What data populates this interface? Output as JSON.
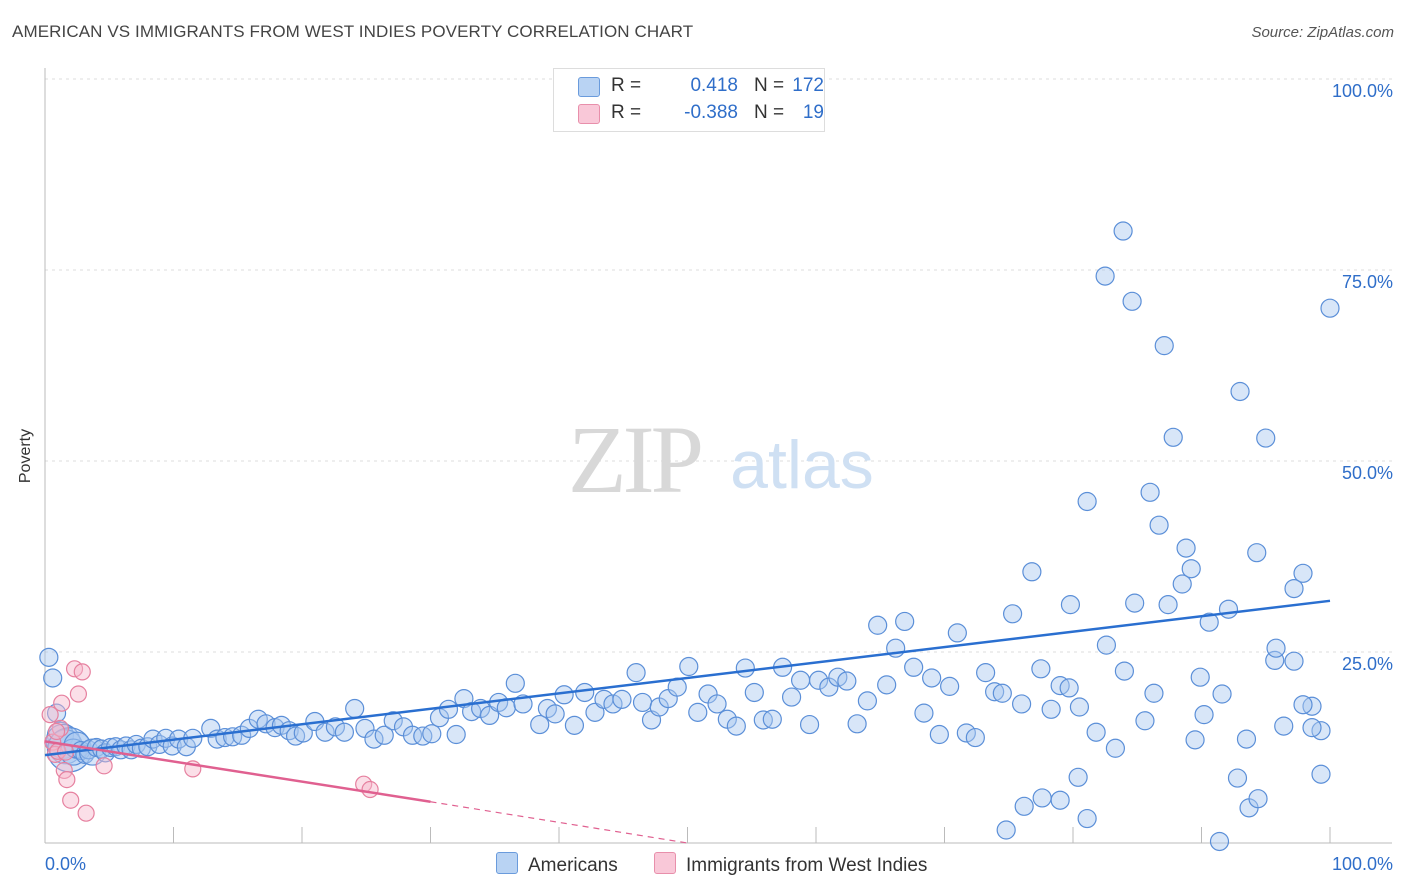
{
  "title": "AMERICAN VS IMMIGRANTS FROM WEST INDIES POVERTY CORRELATION CHART",
  "source": "Source: ZipAtlas.com",
  "watermark": {
    "zip": "ZIP",
    "atlas": "atlas"
  },
  "colors": {
    "americans_fill": "#a9c8f0",
    "americans_stroke": "#5b8fd8",
    "americans_line": "#2a6fd0",
    "immigrants_fill": "#f6b8cc",
    "immigrants_stroke": "#e6809f",
    "immigrants_line": "#e06090",
    "tick_label": "#2f6ec9"
  },
  "legend": {
    "rows": [
      {
        "r_label": "R =",
        "r_value": "0.418",
        "n_label": "N =",
        "n_value": "172"
      },
      {
        "r_label": "R =",
        "r_value": "-0.388",
        "n_label": "N =",
        "n_value": "19"
      }
    ]
  },
  "bottom_legend": {
    "americans": "Americans",
    "immigrants": "Immigrants from West Indies"
  },
  "axis": {
    "ylabel": "Poverty",
    "x_min_label": "0.0%",
    "x_max_label": "100.0%",
    "y_tick_labels": [
      "100.0%",
      "75.0%",
      "50.0%",
      "25.0%"
    ]
  },
  "chart_data": {
    "type": "scatter",
    "xlim": [
      0,
      100
    ],
    "ylim": [
      0,
      100
    ],
    "xlabel": "",
    "ylabel": "Poverty",
    "y_ticks": [
      100,
      75,
      50,
      25
    ],
    "grid": "horizontal dashed",
    "series": [
      {
        "name": "Americans",
        "trend": {
          "x0": 0,
          "y0": 11.5,
          "x1": 100,
          "y1": 31.7
        },
        "points": [
          [
            0.3,
            24.3,
            1
          ],
          [
            0.6,
            21.6,
            1
          ],
          [
            0.9,
            17.0,
            1
          ],
          [
            1.2,
            14.1,
            2
          ],
          [
            1.4,
            13.3,
            3
          ],
          [
            1.6,
            12.6,
            3
          ],
          [
            1.9,
            12.2,
            4
          ],
          [
            2.2,
            11.9,
            2
          ],
          [
            2.5,
            12.8,
            2
          ],
          [
            2.8,
            12.1,
            1
          ],
          [
            3.1,
            11.6,
            1
          ],
          [
            3.4,
            12.2,
            1
          ],
          [
            3.7,
            11.9,
            2
          ],
          [
            4.0,
            12.5,
            1
          ],
          [
            4.4,
            12.3,
            1
          ],
          [
            4.7,
            11.8,
            1
          ],
          [
            5.1,
            12.5,
            1
          ],
          [
            5.5,
            12.6,
            1
          ],
          [
            5.9,
            12.2,
            1
          ],
          [
            6.3,
            12.7,
            1
          ],
          [
            6.7,
            12.2,
            1
          ],
          [
            7.1,
            12.9,
            1
          ],
          [
            7.5,
            12.4,
            1
          ],
          [
            8.0,
            12.6,
            1
          ],
          [
            8.4,
            13.6,
            1
          ],
          [
            8.9,
            12.9,
            1
          ],
          [
            9.4,
            13.7,
            1
          ],
          [
            9.9,
            12.7,
            1
          ],
          [
            10.4,
            13.6,
            1
          ],
          [
            11.0,
            12.6,
            1
          ],
          [
            11.5,
            13.7,
            1
          ],
          [
            12.9,
            15.0,
            1
          ],
          [
            13.4,
            13.6,
            1
          ],
          [
            14.0,
            13.8,
            1
          ],
          [
            14.6,
            13.9,
            1
          ],
          [
            15.3,
            14.1,
            1
          ],
          [
            15.9,
            15.0,
            1
          ],
          [
            16.6,
            16.2,
            1
          ],
          [
            17.2,
            15.6,
            1
          ],
          [
            17.9,
            15.1,
            1
          ],
          [
            18.4,
            15.4,
            1
          ],
          [
            19.0,
            14.7,
            1
          ],
          [
            19.5,
            14.0,
            1
          ],
          [
            20.1,
            14.4,
            1
          ],
          [
            21.0,
            15.9,
            1
          ],
          [
            21.8,
            14.5,
            1
          ],
          [
            22.6,
            15.2,
            1
          ],
          [
            23.3,
            14.5,
            1
          ],
          [
            24.1,
            17.6,
            1
          ],
          [
            24.9,
            15.0,
            1
          ],
          [
            25.6,
            13.6,
            1
          ],
          [
            26.4,
            14.1,
            1
          ],
          [
            27.1,
            16.0,
            1
          ],
          [
            27.9,
            15.2,
            1
          ],
          [
            28.6,
            14.1,
            1
          ],
          [
            29.4,
            14.0,
            1
          ],
          [
            30.1,
            14.3,
            1
          ],
          [
            30.7,
            16.4,
            1
          ],
          [
            31.4,
            17.5,
            1
          ],
          [
            32.0,
            14.2,
            1
          ],
          [
            32.6,
            18.9,
            1
          ],
          [
            33.2,
            17.2,
            1
          ],
          [
            33.9,
            17.6,
            1
          ],
          [
            34.6,
            16.7,
            1
          ],
          [
            35.3,
            18.4,
            1
          ],
          [
            35.9,
            17.7,
            1
          ],
          [
            36.6,
            20.9,
            1
          ],
          [
            37.2,
            18.2,
            1
          ],
          [
            38.5,
            15.5,
            1
          ],
          [
            39.1,
            17.6,
            1
          ],
          [
            39.7,
            16.9,
            1
          ],
          [
            40.4,
            19.4,
            1
          ],
          [
            41.2,
            15.4,
            1
          ],
          [
            42.0,
            19.7,
            1
          ],
          [
            42.8,
            17.1,
            1
          ],
          [
            43.5,
            18.8,
            1
          ],
          [
            44.2,
            18.2,
            1
          ],
          [
            44.9,
            18.8,
            1
          ],
          [
            46.0,
            22.3,
            1
          ],
          [
            46.5,
            18.4,
            1
          ],
          [
            47.2,
            16.1,
            1
          ],
          [
            47.8,
            17.8,
            1
          ],
          [
            48.5,
            18.9,
            1
          ],
          [
            49.2,
            20.4,
            1
          ],
          [
            50.1,
            23.1,
            1
          ],
          [
            50.8,
            17.1,
            1
          ],
          [
            51.6,
            19.5,
            1
          ],
          [
            52.3,
            18.2,
            1
          ],
          [
            53.1,
            16.2,
            1
          ],
          [
            53.8,
            15.3,
            1
          ],
          [
            54.5,
            22.9,
            1
          ],
          [
            55.2,
            19.7,
            1
          ],
          [
            55.9,
            16.1,
            1
          ],
          [
            56.6,
            16.2,
            1
          ],
          [
            57.4,
            23.0,
            1
          ],
          [
            58.1,
            19.1,
            1
          ],
          [
            58.8,
            21.3,
            1
          ],
          [
            59.5,
            15.5,
            1
          ],
          [
            60.2,
            21.3,
            1
          ],
          [
            61.0,
            20.4,
            1
          ],
          [
            61.7,
            21.7,
            1
          ],
          [
            62.4,
            21.2,
            1
          ],
          [
            63.2,
            15.6,
            1
          ],
          [
            64.0,
            18.6,
            1
          ],
          [
            64.8,
            28.5,
            1
          ],
          [
            65.5,
            20.7,
            1
          ],
          [
            66.2,
            25.5,
            1
          ],
          [
            66.9,
            29.0,
            1
          ],
          [
            67.6,
            23.0,
            1
          ],
          [
            68.4,
            17.0,
            1
          ],
          [
            69.0,
            21.6,
            1
          ],
          [
            69.6,
            14.2,
            1
          ],
          [
            70.4,
            20.5,
            1
          ],
          [
            71.0,
            27.5,
            1
          ],
          [
            71.7,
            14.4,
            1
          ],
          [
            72.4,
            13.8,
            1
          ],
          [
            73.2,
            22.3,
            1
          ],
          [
            73.9,
            19.8,
            1
          ],
          [
            74.5,
            19.6,
            1
          ],
          [
            75.3,
            30.0,
            1
          ],
          [
            76.0,
            18.2,
            1
          ],
          [
            76.8,
            35.5,
            1
          ],
          [
            77.5,
            22.8,
            1
          ],
          [
            78.3,
            17.5,
            1
          ],
          [
            79.0,
            20.6,
            1
          ],
          [
            79.8,
            31.2,
            1
          ],
          [
            80.5,
            17.8,
            1
          ],
          [
            81.1,
            44.7,
            1
          ],
          [
            81.8,
            14.5,
            1
          ],
          [
            82.6,
            25.9,
            1
          ],
          [
            83.3,
            12.4,
            1
          ],
          [
            84.0,
            22.5,
            1
          ],
          [
            84.8,
            31.4,
            1
          ],
          [
            85.6,
            16.0,
            1
          ],
          [
            86.3,
            19.6,
            1
          ],
          [
            87.1,
            65.1,
            1
          ],
          [
            87.8,
            53.1,
            1
          ],
          [
            88.5,
            33.9,
            1
          ],
          [
            89.2,
            35.9,
            1
          ],
          [
            89.9,
            21.7,
            1
          ],
          [
            90.6,
            28.9,
            1
          ],
          [
            91.4,
            0.2,
            1
          ],
          [
            92.1,
            30.6,
            1
          ],
          [
            92.8,
            8.5,
            1
          ],
          [
            93.5,
            13.6,
            1
          ],
          [
            94.3,
            38.0,
            1
          ],
          [
            95.0,
            53.0,
            1
          ],
          [
            95.7,
            23.9,
            1
          ],
          [
            96.4,
            15.3,
            1
          ],
          [
            97.2,
            23.8,
            1
          ],
          [
            97.9,
            35.3,
            1
          ],
          [
            98.6,
            17.9,
            1
          ],
          [
            99.3,
            14.7,
            1
          ]
        ]
      },
      {
        "name": "Immigrants from West Indies",
        "trend": {
          "x0": 0,
          "y0": 13.3,
          "x1": 30,
          "y1": 5.4,
          "x_end_dashed": 50,
          "y_end_dashed": 0
        },
        "points": [
          [
            0.4,
            16.8
          ],
          [
            0.6,
            13.2
          ],
          [
            0.8,
            11.6
          ],
          [
            1.0,
            12.0
          ],
          [
            1.2,
            15.0
          ],
          [
            1.5,
            9.5
          ],
          [
            1.7,
            8.3
          ],
          [
            2.0,
            5.6
          ],
          [
            2.3,
            22.8
          ],
          [
            2.6,
            19.5
          ],
          [
            2.9,
            22.4
          ],
          [
            3.2,
            3.9
          ],
          [
            1.3,
            18.3
          ],
          [
            0.9,
            14.6
          ],
          [
            1.6,
            11.9
          ],
          [
            4.6,
            10.1
          ],
          [
            11.5,
            9.7
          ],
          [
            24.8,
            7.7
          ],
          [
            25.3,
            7.0
          ]
        ]
      }
    ],
    "far_points": {
      "Americans": [
        [
          104,
          1.7
        ],
        [
          106,
          4.8
        ],
        [
          108,
          5.9
        ],
        [
          110,
          5.6
        ],
        [
          112,
          8.6
        ],
        [
          113,
          3.2
        ],
        [
          111,
          20.3
        ],
        [
          115,
          74.2
        ],
        [
          117,
          80.1
        ],
        [
          118,
          70.9
        ],
        [
          120,
          45.9
        ],
        [
          121,
          41.6
        ],
        [
          122,
          31.2
        ],
        [
          124,
          38.6
        ],
        [
          125,
          13.5
        ],
        [
          126,
          16.8
        ],
        [
          128,
          19.5
        ],
        [
          130,
          59.1
        ],
        [
          131,
          4.6
        ],
        [
          132,
          5.8
        ],
        [
          134,
          25.5
        ],
        [
          136,
          33.3
        ],
        [
          137,
          18.1
        ],
        [
          138,
          15.1
        ],
        [
          139,
          9.0
        ],
        [
          140,
          70.0
        ]
      ]
    }
  }
}
